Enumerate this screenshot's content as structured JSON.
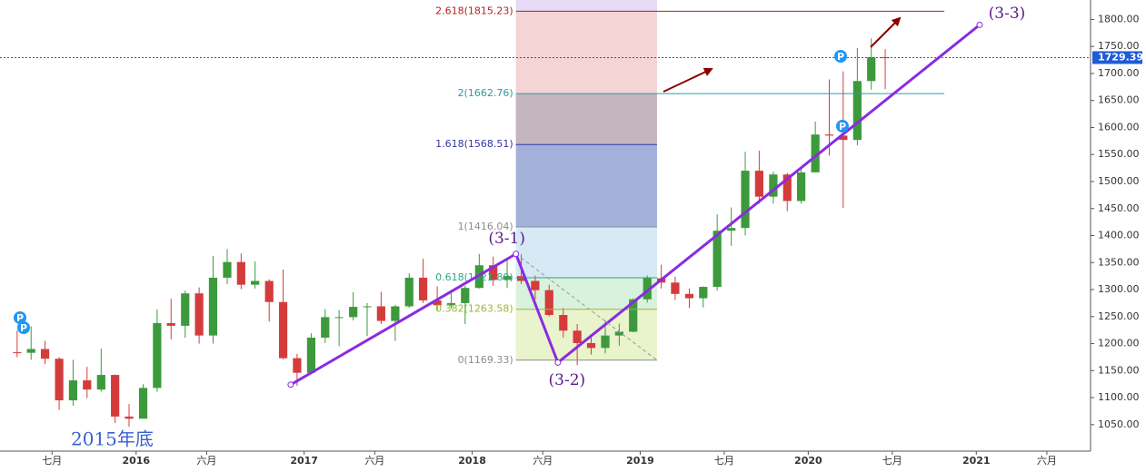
{
  "chart_data": {
    "type": "candlestick",
    "xlim": [
      2015.19,
      2021.68
    ],
    "ylim": [
      1001,
      1836
    ],
    "xticks": [
      {
        "value": 2015.5,
        "label": "七月"
      },
      2016,
      {
        "value": 2016.42,
        "label": "六月"
      },
      2017,
      {
        "value": 2017.42,
        "label": "六月"
      },
      2018,
      {
        "value": 2018.42,
        "label": "六月"
      },
      2019,
      {
        "value": 2019.5,
        "label": "七月"
      },
      2020,
      {
        "value": 2020.5,
        "label": "七月"
      },
      2021,
      {
        "value": 2021.42,
        "label": "六月"
      }
    ],
    "yticks": [
      {
        "value": 1050,
        "label": "1050.00"
      },
      {
        "value": 1100,
        "label": "1100.00"
      },
      {
        "value": 1150,
        "label": "1150.00"
      },
      {
        "value": 1200,
        "label": "1200.00"
      },
      {
        "value": 1250,
        "label": "1250.00"
      },
      {
        "value": 1300,
        "label": "1300.00"
      },
      {
        "value": 1350,
        "label": "1350.00"
      },
      {
        "value": 1400,
        "label": "1400.00"
      },
      {
        "value": 1450,
        "label": "1450.00"
      },
      {
        "value": 1500,
        "label": "1500.00"
      },
      {
        "value": 1550,
        "label": "1550.00"
      },
      {
        "value": 1600,
        "label": "1600.00"
      },
      {
        "value": 1650,
        "label": "1650.00"
      },
      {
        "value": 1700,
        "label": "1700.00"
      },
      {
        "value": 1750,
        "label": "1750.00"
      },
      {
        "value": 1800,
        "label": "1800.00"
      }
    ],
    "up_color": "#3c9a3c",
    "down_color": "#d43c3c",
    "x": [
      2015.292,
      2015.375,
      2015.458,
      2015.542,
      2015.625,
      2015.708,
      2015.792,
      2015.875,
      2015.958,
      2016.042,
      2016.125,
      2016.208,
      2016.292,
      2016.375,
      2016.458,
      2016.542,
      2016.625,
      2016.708,
      2016.792,
      2016.875,
      2016.958,
      2017.042,
      2017.125,
      2017.208,
      2017.292,
      2017.375,
      2017.458,
      2017.542,
      2017.625,
      2017.708,
      2017.792,
      2017.875,
      2017.958,
      2018.042,
      2018.125,
      2018.208,
      2018.292,
      2018.375,
      2018.458,
      2018.542,
      2018.625,
      2018.708,
      2018.792,
      2018.875,
      2018.958,
      2019.042,
      2019.125,
      2019.208,
      2019.292,
      2019.375,
      2019.458,
      2019.542,
      2019.625,
      2019.708,
      2019.792,
      2019.875,
      2019.958,
      2020.042,
      2020.125,
      2020.208,
      2020.292,
      2020.375,
      2020.458
    ],
    "open": [
      1184,
      1183,
      1190,
      1172,
      1095,
      1132,
      1115,
      1142,
      1065,
      1061,
      1118,
      1238,
      1233,
      1293,
      1215,
      1322,
      1351,
      1309,
      1316,
      1277,
      1173,
      1146,
      1211,
      1249,
      1249,
      1268,
      1269,
      1242,
      1269,
      1322,
      1280,
      1271,
      1275,
      1303,
      1345,
      1318,
      1325,
      1316,
      1299,
      1253,
      1224,
      1201,
      1192,
      1215,
      1222,
      1282,
      1321,
      1313,
      1292,
      1284,
      1305,
      1409,
      1414,
      1520,
      1472,
      1513,
      1464,
      1517,
      1587,
      1585,
      1577,
      1686,
      1730
    ],
    "high": [
      1224,
      1232,
      1205,
      1175,
      1170,
      1157,
      1191,
      1143,
      1088,
      1125,
      1263,
      1283,
      1298,
      1304,
      1362,
      1375,
      1367,
      1352,
      1319,
      1337,
      1181,
      1219,
      1264,
      1262,
      1295,
      1275,
      1296,
      1272,
      1330,
      1357,
      1306,
      1299,
      1307,
      1366,
      1361,
      1356,
      1365,
      1326,
      1309,
      1266,
      1236,
      1214,
      1243,
      1237,
      1284,
      1326,
      1346,
      1324,
      1302,
      1306,
      1439,
      1452,
      1555,
      1557,
      1518,
      1516,
      1524,
      1611,
      1689,
      1704,
      1747,
      1765,
      1745
    ],
    "low": [
      1175,
      1170,
      1162,
      1077,
      1085,
      1099,
      1111,
      1053,
      1046,
      1062,
      1111,
      1208,
      1211,
      1200,
      1200,
      1310,
      1301,
      1302,
      1241,
      1171,
      1122,
      1146,
      1201,
      1195,
      1243,
      1214,
      1236,
      1205,
      1266,
      1275,
      1261,
      1265,
      1236,
      1302,
      1307,
      1303,
      1310,
      1282,
      1250,
      1211,
      1160,
      1180,
      1182,
      1196,
      1221,
      1276,
      1302,
      1281,
      1266,
      1267,
      1298,
      1381,
      1400,
      1459,
      1459,
      1445,
      1459,
      1517,
      1548,
      1451,
      1567,
      1670,
      1671
    ],
    "close": [
      1183,
      1190,
      1172,
      1095,
      1132,
      1115,
      1142,
      1065,
      1061,
      1118,
      1238,
      1233,
      1293,
      1215,
      1322,
      1351,
      1309,
      1316,
      1277,
      1173,
      1146,
      1211,
      1249,
      1249,
      1268,
      1269,
      1242,
      1269,
      1322,
      1280,
      1271,
      1275,
      1303,
      1345,
      1318,
      1325,
      1316,
      1299,
      1253,
      1224,
      1201,
      1192,
      1215,
      1222,
      1282,
      1321,
      1313,
      1292,
      1284,
      1305,
      1409,
      1414,
      1520,
      1472,
      1513,
      1464,
      1517,
      1587,
      1585,
      1577,
      1686,
      1730,
      1729
    ],
    "last_price": 1729.39,
    "last_price_color": "#1e5bd6",
    "fib": {
      "x": [
        2018.26,
        2019.1
      ],
      "extended_end": 2020.81,
      "levels": [
        {
          "value": 1169.33,
          "label": "0(1169.33)",
          "color": "#8c8c8c",
          "fill": "#e9f3cc"
        },
        {
          "value": 1263.58,
          "label": "0.382(1263.58)",
          "color": "#9ab832",
          "fill": "#d8f2dd"
        },
        {
          "value": 1321.8,
          "label": "0.618(1321.80)",
          "color": "#2aa889",
          "fill": "#d6e9f5"
        },
        {
          "value": 1416.04,
          "label": "1(1416.04)",
          "color": "#8c8c8c",
          "fill": "#a3b1da"
        },
        {
          "value": 1568.51,
          "label": "1.618(1568.51)",
          "color": "#3535a8",
          "fill": "#c4b5be"
        },
        {
          "value": 1662.76,
          "label": "2(1662.76)",
          "color": "#2a9aa8",
          "fill": "#f4d4d4",
          "extended": true
        },
        {
          "value": 1815.23,
          "label": "2.618(1815.23)",
          "color": "#b22222",
          "fill": "#e6daf6",
          "extended": true
        }
      ]
    },
    "wave": {
      "color": "#8a2be2",
      "x": [
        2016.92,
        2018.26,
        2018.51,
        2021.02
      ],
      "y": [
        1124,
        1366,
        1165,
        1790
      ],
      "labels": [
        null,
        "(3-1)",
        "(3-2)",
        "(3-3)"
      ]
    },
    "annotation": "2015年底"
  }
}
